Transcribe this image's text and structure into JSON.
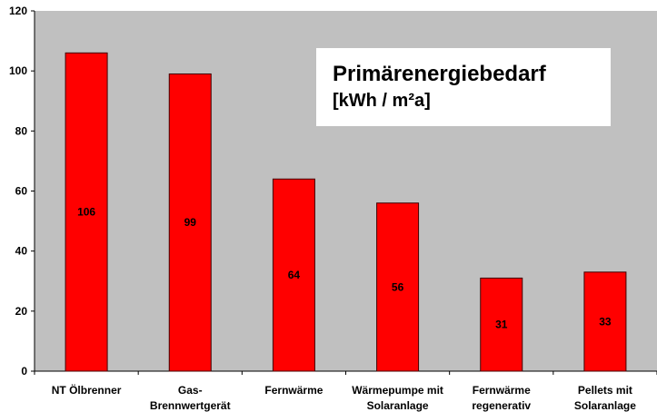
{
  "chart_data": {
    "type": "bar",
    "title": "Primärenergiebedarf",
    "subtitle": "[kWh / m²a]",
    "categories": [
      "NT Ölbrenner",
      "Gas-\nBrennwertgerät",
      "Fernwärme",
      "Wärmepumpe mit\nSolaranlage",
      "Fernwärme\nregenerativ",
      "Pellets mit\nSolaranlage"
    ],
    "values": [
      106,
      99,
      64,
      56,
      31,
      33
    ],
    "color": "#ff0000",
    "ylim": [
      0,
      120
    ],
    "yticks": [
      0,
      20,
      40,
      60,
      80,
      100,
      120
    ]
  }
}
